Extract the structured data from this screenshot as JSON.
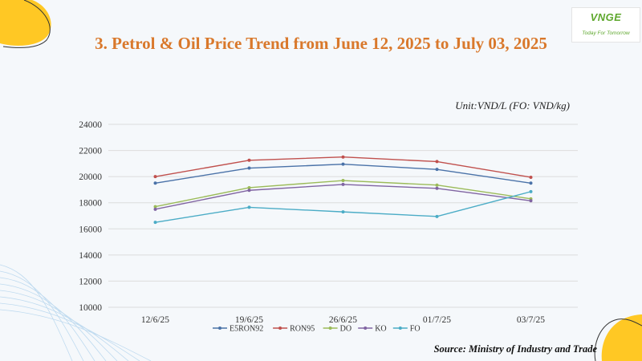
{
  "slide": {
    "title": "3. Petrol & Oil Price Trend from June 12, 2025 to July 03, 2025",
    "unit_note": "Unit:VND/L (FO: VND/kg)",
    "source": "Source: Ministry of Industry and Trade"
  },
  "logo": {
    "name": "VNGE",
    "tagline": "Today For Tomorrow",
    "color": "#5fa82e"
  },
  "colors": {
    "title": "#d9782b",
    "accent_yellow": "#ffc824",
    "background": "#f5f8fb"
  },
  "chart_data": {
    "type": "line",
    "categories": [
      "12/6/25",
      "19/6/25",
      "26/6/25",
      "01/7/25",
      "03/7/25"
    ],
    "ylim": [
      10000,
      24000
    ],
    "yticks": [
      10000,
      12000,
      14000,
      16000,
      18000,
      20000,
      22000,
      24000
    ],
    "grid": true,
    "legend_position": "bottom",
    "series": [
      {
        "name": "E5RON92",
        "color": "#4a72a8",
        "values": [
          19500,
          20650,
          20950,
          20550,
          19500
        ]
      },
      {
        "name": "RON95",
        "color": "#c0504d",
        "values": [
          20000,
          21250,
          21500,
          21150,
          19950
        ]
      },
      {
        "name": "DO",
        "color": "#9bbb59",
        "values": [
          17700,
          19150,
          19700,
          19350,
          18300
        ]
      },
      {
        "name": "KO",
        "color": "#8064a2",
        "values": [
          17500,
          18950,
          19400,
          19100,
          18150
        ]
      },
      {
        "name": "FO",
        "color": "#4bacc6",
        "values": [
          16500,
          17650,
          17300,
          16950,
          18850
        ]
      }
    ]
  }
}
